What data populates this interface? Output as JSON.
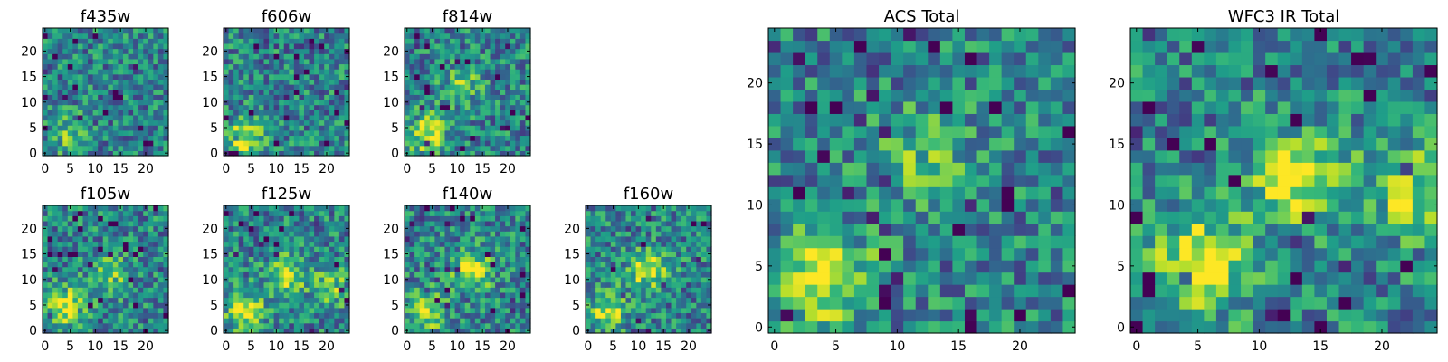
{
  "chart_data": [
    {
      "type": "heatmap",
      "title": "f435w",
      "x_ticks": [
        "0",
        "5",
        "10",
        "15",
        "20"
      ],
      "y_ticks": [
        "0",
        "5",
        "10",
        "15",
        "20"
      ],
      "xlim": [
        -0.5,
        24.5
      ],
      "ylim": [
        -0.5,
        24.5
      ],
      "grid": false,
      "colormap": "viridis",
      "bright_regions": [
        {
          "x": 4,
          "y": 4,
          "level": 0.25
        }
      ]
    },
    {
      "type": "heatmap",
      "title": "f606w",
      "x_ticks": [
        "0",
        "5",
        "10",
        "15",
        "20"
      ],
      "y_ticks": [
        "0",
        "5",
        "10",
        "15",
        "20"
      ],
      "xlim": [
        -0.5,
        24.5
      ],
      "ylim": [
        -0.5,
        24.5
      ],
      "grid": false,
      "colormap": "viridis",
      "bright_regions": [
        {
          "x": 4,
          "y": 3,
          "level": 0.5
        }
      ]
    },
    {
      "type": "heatmap",
      "title": "f814w",
      "x_ticks": [
        "0",
        "5",
        "10",
        "15",
        "20"
      ],
      "y_ticks": [
        "0",
        "5",
        "10",
        "15",
        "20"
      ],
      "xlim": [
        -0.5,
        24.5
      ],
      "ylim": [
        -0.5,
        24.5
      ],
      "grid": false,
      "colormap": "viridis",
      "bright_regions": [
        {
          "x": 4,
          "y": 4,
          "level": 0.5
        },
        {
          "x": 11,
          "y": 13,
          "level": 0.3
        }
      ]
    },
    {
      "type": "heatmap",
      "title": "f105w",
      "x_ticks": [
        "0",
        "5",
        "10",
        "15",
        "20"
      ],
      "y_ticks": [
        "0",
        "5",
        "10",
        "15",
        "20"
      ],
      "xlim": [
        -0.5,
        24.5
      ],
      "ylim": [
        -0.5,
        24.5
      ],
      "grid": false,
      "colormap": "viridis",
      "bright_regions": [
        {
          "x": 4,
          "y": 5,
          "level": 0.55
        },
        {
          "x": 13,
          "y": 11,
          "level": 0.3
        }
      ]
    },
    {
      "type": "heatmap",
      "title": "f125w",
      "x_ticks": [
        "0",
        "5",
        "10",
        "15",
        "20"
      ],
      "y_ticks": [
        "0",
        "5",
        "10",
        "15",
        "20"
      ],
      "xlim": [
        -0.5,
        24.5
      ],
      "ylim": [
        -0.5,
        24.5
      ],
      "grid": false,
      "colormap": "viridis",
      "bright_regions": [
        {
          "x": 4,
          "y": 4,
          "level": 0.5
        },
        {
          "x": 12,
          "y": 11,
          "level": 0.45
        },
        {
          "x": 21,
          "y": 9,
          "level": 0.35
        }
      ]
    },
    {
      "type": "heatmap",
      "title": "f140w",
      "x_ticks": [
        "0",
        "5",
        "10",
        "15",
        "20"
      ],
      "y_ticks": [
        "0",
        "5",
        "10",
        "15",
        "20"
      ],
      "xlim": [
        -0.5,
        24.5
      ],
      "ylim": [
        -0.5,
        24.5
      ],
      "grid": false,
      "colormap": "viridis",
      "bright_regions": [
        {
          "x": 4,
          "y": 4,
          "level": 0.45
        },
        {
          "x": 13,
          "y": 12,
          "level": 0.5
        }
      ]
    },
    {
      "type": "heatmap",
      "title": "f160w",
      "x_ticks": [
        "0",
        "5",
        "10",
        "15",
        "20"
      ],
      "y_ticks": [
        "0",
        "5",
        "10",
        "15",
        "20"
      ],
      "xlim": [
        -0.5,
        24.5
      ],
      "ylim": [
        -0.5,
        24.5
      ],
      "grid": false,
      "colormap": "viridis",
      "bright_regions": [
        {
          "x": 4,
          "y": 4,
          "level": 0.4
        },
        {
          "x": 12,
          "y": 12,
          "level": 0.55
        }
      ]
    },
    {
      "type": "heatmap",
      "title": "ACS Total",
      "x_ticks": [
        "0",
        "5",
        "10",
        "15",
        "20"
      ],
      "y_ticks": [
        "0",
        "5",
        "10",
        "15",
        "20"
      ],
      "xlim": [
        -0.5,
        24.5
      ],
      "ylim": [
        -0.5,
        24.5
      ],
      "grid": false,
      "colormap": "viridis",
      "bright_regions": [
        {
          "x": 4,
          "y": 4,
          "level": 0.55
        },
        {
          "x": 12,
          "y": 14,
          "level": 0.25
        }
      ]
    },
    {
      "type": "heatmap",
      "title": "WFC3 IR Total",
      "x_ticks": [
        "0",
        "5",
        "10",
        "15",
        "20"
      ],
      "y_ticks": [
        "0",
        "5",
        "10",
        "15",
        "20"
      ],
      "xlim": [
        -0.5,
        24.5
      ],
      "ylim": [
        -0.5,
        24.5
      ],
      "grid": false,
      "colormap": "viridis",
      "bright_regions": [
        {
          "x": 5,
          "y": 5,
          "level": 0.6
        },
        {
          "x": 13,
          "y": 12,
          "level": 0.55
        },
        {
          "x": 23,
          "y": 11,
          "level": 0.4
        }
      ]
    }
  ]
}
